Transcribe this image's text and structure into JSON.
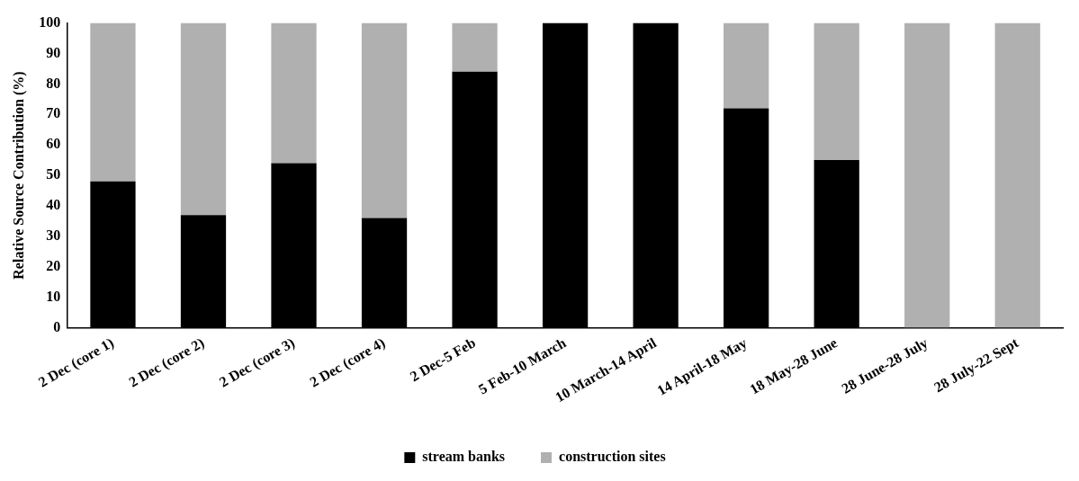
{
  "chart_data": {
    "type": "bar",
    "stacked": true,
    "ylabel": "Relative Source Contribution (%)",
    "categories": [
      "2 Dec (core 1)",
      "2 Dec (core 2)",
      "2 Dec (core 3)",
      "2 Dec (core 4)",
      "2 Dec-5 Feb",
      "5 Feb-10 March",
      "10 March-14 April",
      "14 April-18 May",
      "18 May-28 June",
      "28 June-28 July",
      "28 July-22 Sept"
    ],
    "series": [
      {
        "name": "stream banks",
        "color": "#000000",
        "values": [
          48,
          37,
          54,
          36,
          84,
          100,
          100,
          72,
          55,
          0,
          0
        ]
      },
      {
        "name": "construction sites",
        "color": "#b0b0b0",
        "values": [
          52,
          63,
          46,
          64,
          16,
          0,
          0,
          28,
          45,
          100,
          100
        ]
      }
    ],
    "ylim": [
      0,
      100
    ],
    "yticks": [
      0,
      10,
      20,
      30,
      40,
      50,
      60,
      70,
      80,
      90,
      100
    ],
    "grid": false,
    "legend": "bottom"
  }
}
